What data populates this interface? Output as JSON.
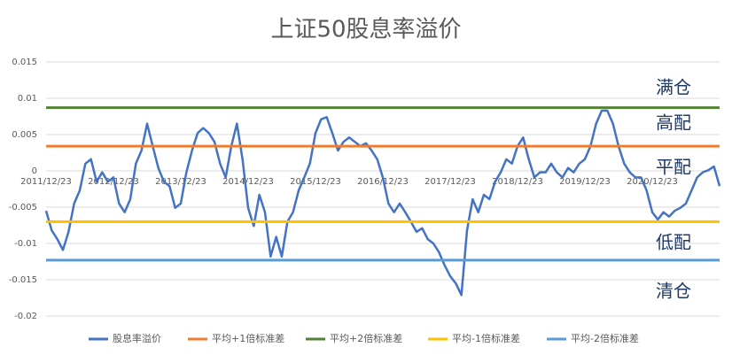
{
  "chart_data": {
    "type": "line",
    "title": "上证50股息率溢价",
    "categories": [
      "2011/12/23",
      null,
      null,
      null,
      null,
      null,
      null,
      null,
      null,
      null,
      null,
      null,
      "2012/12/23",
      null,
      null,
      null,
      null,
      null,
      null,
      null,
      null,
      null,
      null,
      null,
      "2013/12/23",
      null,
      null,
      null,
      null,
      null,
      null,
      null,
      null,
      null,
      null,
      null,
      "2014/12/23",
      null,
      null,
      null,
      null,
      null,
      null,
      null,
      null,
      null,
      null,
      null,
      "2015/12/23",
      null,
      null,
      null,
      null,
      null,
      null,
      null,
      null,
      null,
      null,
      null,
      "2016/12/23",
      null,
      null,
      null,
      null,
      null,
      null,
      null,
      null,
      null,
      null,
      null,
      "2017/12/23",
      null,
      null,
      null,
      null,
      null,
      null,
      null,
      null,
      null,
      null,
      null,
      "2018/12/23",
      null,
      null,
      null,
      null,
      null,
      null,
      null,
      null,
      null,
      null,
      null,
      "2019/12/23",
      null,
      null,
      null,
      null,
      null,
      null,
      null,
      null,
      null,
      null,
      null,
      "2020/12/23",
      null,
      null,
      null,
      null,
      null,
      null,
      null,
      null,
      null,
      null,
      null,
      null
    ],
    "series": [
      {
        "name": "股息率溢价",
        "color": "#4472c4",
        "values": [
          -0.0055,
          -0.0082,
          -0.0094,
          -0.0109,
          -0.0084,
          -0.0045,
          -0.0027,
          0.001,
          0.0016,
          -0.0015,
          -0.0002,
          -0.0015,
          -0.0009,
          -0.0045,
          -0.0057,
          -0.0039,
          0.001,
          0.0028,
          0.0065,
          0.0034,
          0.0004,
          -0.0015,
          -0.0021,
          -0.0051,
          -0.0045,
          -0.0002,
          0.0028,
          0.0052,
          0.0059,
          0.0052,
          0.004,
          0.001,
          -0.0009,
          0.0034,
          0.0065,
          0.0016,
          -0.0051,
          -0.0076,
          -0.0033,
          -0.0057,
          -0.0118,
          -0.0091,
          -0.0118,
          -0.007,
          -0.0057,
          -0.0027,
          -0.0009,
          0.001,
          0.0052,
          0.0071,
          0.0074,
          0.0052,
          0.0028,
          0.004,
          0.0046,
          0.004,
          0.0034,
          0.0038,
          0.0028,
          0.0016,
          -0.0009,
          -0.0045,
          -0.0057,
          -0.0045,
          -0.0057,
          -0.007,
          -0.0084,
          -0.0079,
          -0.0094,
          -0.01,
          -0.0112,
          -0.013,
          -0.0145,
          -0.0155,
          -0.0171,
          -0.0082,
          -0.0039,
          -0.0057,
          -0.0033,
          -0.0039,
          -0.0015,
          -0.0002,
          0.0016,
          0.001,
          0.0034,
          0.0046,
          0.0016,
          -0.0009,
          -0.0002,
          -0.0002,
          0.001,
          -0.0002,
          -0.0009,
          0.0004,
          -0.0002,
          0.001,
          0.0016,
          0.0034,
          0.0065,
          0.0083,
          0.0083,
          0.0065,
          0.0034,
          0.001,
          -0.0002,
          -0.0009,
          -0.0009,
          -0.0027,
          -0.0057,
          -0.0067,
          -0.0057,
          -0.0063,
          -0.0055,
          -0.0051,
          -0.0045,
          -0.0027,
          -0.0009,
          -0.0002,
          0.0001,
          0.0006,
          -0.0021
        ]
      },
      {
        "name": "平均+1倍标准差",
        "color": "#ed7d31",
        "value": 0.0034
      },
      {
        "name": "平均+2倍标准差",
        "color": "#548235",
        "value": 0.0087
      },
      {
        "name": "平均-1倍标准差",
        "color": "#ffc000",
        "value": -0.007
      },
      {
        "name": "平均-2倍标准差",
        "color": "#5b9bd5",
        "value": -0.0123
      }
    ],
    "annotations": [
      "满仓",
      "高配",
      "平配",
      "低配",
      "清仓"
    ],
    "ylim": [
      -0.02,
      0.015
    ],
    "yticks": [
      -0.02,
      -0.015,
      -0.01,
      -0.005,
      0,
      0.005,
      0.01,
      0.015
    ],
    "grid": true,
    "legend": "bottom"
  }
}
